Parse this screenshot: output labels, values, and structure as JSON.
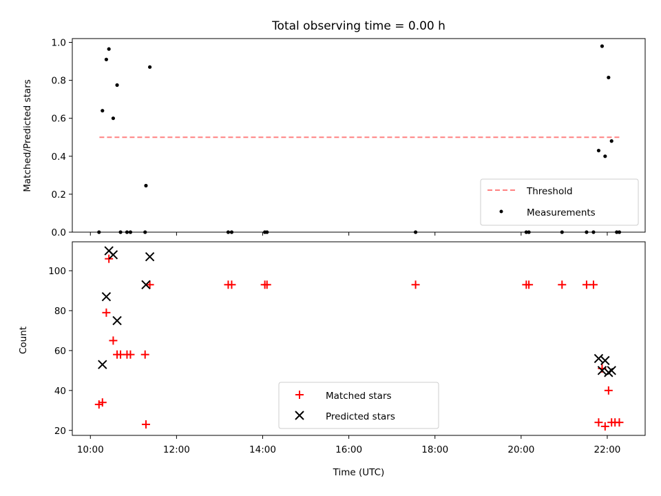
{
  "chart_data": {
    "title": "Total observing time = 0.00 h",
    "panels": [
      {
        "type": "scatter",
        "ylabel": "Matched/Predicted stars",
        "xlim": [
          9.58,
          22.88
        ],
        "ylim": [
          0.0,
          1.02
        ],
        "yticks": [
          "0.0",
          "0.2",
          "0.4",
          "0.6",
          "0.8",
          "1.0"
        ],
        "legend_position": "lower right",
        "threshold": {
          "name": "Threshold",
          "value": 0.5,
          "x_start": 10.21,
          "x_end": 22.29,
          "color": "#ff8080",
          "style": "dashed"
        },
        "series": [
          {
            "name": "Measurements",
            "color": "#000000",
            "marker": "dot",
            "points": [
              [
                10.2,
                0.0
              ],
              [
                10.28,
                0.64
              ],
              [
                10.37,
                0.91
              ],
              [
                10.43,
                0.965
              ],
              [
                10.53,
                0.6
              ],
              [
                10.62,
                0.775
              ],
              [
                10.7,
                0.0
              ],
              [
                10.85,
                0.0
              ],
              [
                10.93,
                0.0
              ],
              [
                11.27,
                0.0
              ],
              [
                11.29,
                0.245
              ],
              [
                11.38,
                0.87
              ],
              [
                13.2,
                0.0
              ],
              [
                13.28,
                0.0
              ],
              [
                14.05,
                0.0
              ],
              [
                14.1,
                0.0
              ],
              [
                17.55,
                0.0
              ],
              [
                20.12,
                0.0
              ],
              [
                20.18,
                0.0
              ],
              [
                20.95,
                0.0
              ],
              [
                21.52,
                0.0
              ],
              [
                21.68,
                0.0
              ],
              [
                21.8,
                0.43
              ],
              [
                21.88,
                0.98
              ],
              [
                21.95,
                0.4
              ],
              [
                22.03,
                0.815
              ],
              [
                22.1,
                0.48
              ],
              [
                22.22,
                0.0
              ],
              [
                22.28,
                0.0
              ]
            ]
          }
        ]
      },
      {
        "type": "scatter",
        "xlabel": "Time (UTC)",
        "ylabel": "Count",
        "xlim": [
          9.58,
          22.88
        ],
        "ylim": [
          17.5,
          114.5
        ],
        "yticks": [
          "20",
          "40",
          "60",
          "80",
          "100"
        ],
        "xticks": [
          "10:00",
          "12:00",
          "14:00",
          "16:00",
          "18:00",
          "20:00",
          "22:00"
        ],
        "legend_position": "lower center",
        "series": [
          {
            "name": "Matched stars",
            "color": "#ff0000",
            "marker": "plus",
            "points": [
              [
                10.2,
                33
              ],
              [
                10.28,
                34
              ],
              [
                10.37,
                79
              ],
              [
                10.43,
                106
              ],
              [
                10.53,
                65
              ],
              [
                10.62,
                58
              ],
              [
                10.7,
                58
              ],
              [
                10.85,
                58
              ],
              [
                10.93,
                58
              ],
              [
                11.27,
                58
              ],
              [
                11.29,
                23
              ],
              [
                11.38,
                93
              ],
              [
                13.2,
                93
              ],
              [
                13.28,
                93
              ],
              [
                14.05,
                93
              ],
              [
                14.1,
                93
              ],
              [
                17.55,
                93
              ],
              [
                20.12,
                93
              ],
              [
                20.18,
                93
              ],
              [
                20.95,
                93
              ],
              [
                21.52,
                93
              ],
              [
                21.68,
                93
              ],
              [
                21.8,
                24
              ],
              [
                21.88,
                51
              ],
              [
                21.95,
                22
              ],
              [
                22.03,
                40
              ],
              [
                22.1,
                24
              ],
              [
                22.18,
                24
              ],
              [
                22.28,
                24
              ]
            ]
          },
          {
            "name": "Predicted stars",
            "color": "#000000",
            "marker": "x",
            "points": [
              [
                10.28,
                53
              ],
              [
                10.37,
                87
              ],
              [
                10.43,
                110
              ],
              [
                10.53,
                108
              ],
              [
                10.62,
                75
              ],
              [
                11.29,
                93
              ],
              [
                11.38,
                107
              ],
              [
                21.8,
                56
              ],
              [
                21.88,
                50
              ],
              [
                21.95,
                55
              ],
              [
                22.03,
                49
              ],
              [
                22.1,
                50
              ]
            ]
          }
        ]
      }
    ]
  }
}
